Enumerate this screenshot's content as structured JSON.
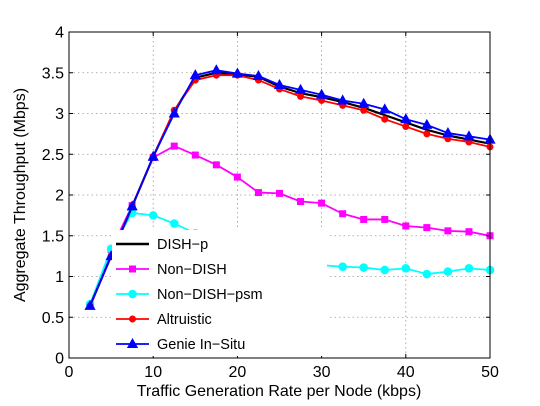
{
  "chart_data": {
    "type": "line",
    "title": "",
    "xlabel": "Traffic Generation Rate per Node (kbps)",
    "ylabel": "Aggregate Throughput (Mbps)",
    "xlim": [
      0,
      50
    ],
    "ylim": [
      0,
      4
    ],
    "xticks": [
      0,
      10,
      20,
      30,
      40,
      50
    ],
    "yticks": [
      0,
      0.5,
      1,
      1.5,
      2,
      2.5,
      3,
      3.5,
      4
    ],
    "xtick_labels": [
      "0",
      "10",
      "20",
      "30",
      "40",
      "50"
    ],
    "ytick_labels": [
      "0",
      "0.5",
      "1",
      "1.5",
      "2",
      "2.5",
      "3",
      "3.5",
      "4"
    ],
    "grid": true,
    "legend_position": "lower-left",
    "x": [
      2.5,
      5,
      7.5,
      10,
      12.5,
      15,
      17.5,
      20,
      22.5,
      25,
      27.5,
      30,
      32.5,
      35,
      37.5,
      40,
      42.5,
      45,
      47.5,
      50
    ],
    "series": [
      {
        "name": "DISH−p",
        "color": "#000000",
        "marker": "none",
        "values": [
          0.64,
          1.25,
          1.86,
          2.47,
          3.03,
          3.44,
          3.5,
          3.48,
          3.45,
          3.33,
          3.25,
          3.2,
          3.14,
          3.07,
          2.98,
          2.89,
          2.8,
          2.73,
          2.68,
          2.63
        ]
      },
      {
        "name": "Non−DISH",
        "color": "#ff00ff",
        "marker": "square",
        "values": [
          0.64,
          1.33,
          1.87,
          2.46,
          2.6,
          2.49,
          2.37,
          2.22,
          2.03,
          2.02,
          1.92,
          1.9,
          1.77,
          1.7,
          1.7,
          1.62,
          1.6,
          1.56,
          1.55,
          1.5
        ]
      },
      {
        "name": "Non−DISH−psm",
        "color": "#00ffff",
        "marker": "circle",
        "values": [
          0.66,
          1.34,
          1.78,
          1.75,
          1.65,
          1.53,
          1.33,
          1.27,
          1.21,
          1.18,
          1.17,
          1.14,
          1.12,
          1.11,
          1.08,
          1.1,
          1.03,
          1.06,
          1.1,
          1.08
        ]
      },
      {
        "name": "Altruistic",
        "color": "#ff0000",
        "marker": "dot",
        "values": [
          0.64,
          1.25,
          1.86,
          2.47,
          3.04,
          3.41,
          3.47,
          3.47,
          3.41,
          3.3,
          3.21,
          3.16,
          3.1,
          3.04,
          2.93,
          2.84,
          2.75,
          2.69,
          2.65,
          2.59
        ]
      },
      {
        "name": "Genie In−Situ",
        "color": "#0000ff",
        "marker": "triangle",
        "values": [
          0.64,
          1.25,
          1.86,
          2.47,
          3.0,
          3.47,
          3.53,
          3.49,
          3.46,
          3.35,
          3.29,
          3.23,
          3.16,
          3.12,
          3.05,
          2.93,
          2.86,
          2.76,
          2.72,
          2.68
        ]
      }
    ]
  }
}
